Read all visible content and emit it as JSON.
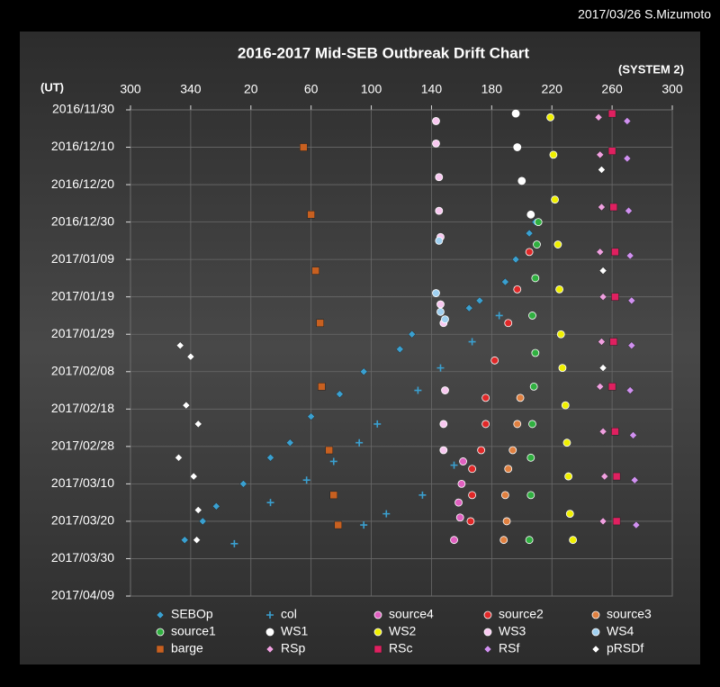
{
  "chart_data": {
    "type": "scatter",
    "title": "2016-2017 Mid-SEB Outbreak Drift Chart",
    "credit": "2017/03/26 S.Mizumoto",
    "ylabel": "(UT)",
    "xlabel": "(SYSTEM 2)",
    "xlim": [
      300,
      660
    ],
    "xticks": [
      300,
      340,
      {
        "value": 380,
        "label": "20"
      },
      {
        "value": 420,
        "label": "60"
      },
      {
        "value": 460,
        "label": "100"
      },
      {
        "value": 500,
        "label": "140"
      },
      {
        "value": 540,
        "label": "180"
      },
      {
        "value": 580,
        "label": "220"
      },
      {
        "value": 620,
        "label": "260"
      },
      {
        "value": 660,
        "label": "300"
      }
    ],
    "ylim": [
      "2016/11/30",
      "2017/04/09"
    ],
    "yticks": [
      "2016/11/30",
      "2016/12/10",
      "2016/12/20",
      "2016/12/30",
      "2017/01/09",
      "2017/01/19",
      "2017/01/29",
      "2017/02/08",
      "2017/02/18",
      "2017/02/28",
      "2017/03/10",
      "2017/03/20",
      "2017/03/30",
      "2017/04/09"
    ],
    "grid": true,
    "series": [
      {
        "name": "SEBOp",
        "color": "#3aa0d0",
        "marker": "diamond",
        "x": [
          569,
          565,
          556,
          549,
          532,
          525,
          487,
          479,
          455,
          439,
          420,
          406,
          393,
          375,
          357,
          348,
          336
        ],
        "y": [
          "2016/12/30",
          "2017/01/02",
          "2017/01/09",
          "2017/01/15",
          "2017/01/20",
          "2017/01/22",
          "2017/01/29",
          "2017/02/02",
          "2017/02/08",
          "2017/02/14",
          "2017/02/20",
          "2017/02/27",
          "2017/03/03",
          "2017/03/10",
          "2017/03/16",
          "2017/03/20",
          "2017/03/25"
        ]
      },
      {
        "name": "col",
        "color": "#3aa0d0",
        "marker": "plus",
        "x": [
          545,
          527,
          506,
          491,
          464,
          452,
          435,
          417,
          393,
          369,
          515,
          494,
          470,
          455
        ],
        "y": [
          "2017/01/24",
          "2017/01/31",
          "2017/02/07",
          "2017/02/13",
          "2017/02/22",
          "2017/02/27",
          "2017/03/04",
          "2017/03/09",
          "2017/03/15",
          "2017/03/26",
          "2017/03/05",
          "2017/03/13",
          "2017/03/18",
          "2017/03/21"
        ]
      },
      {
        "name": "source4",
        "color": "#e060c0",
        "marker": "circle",
        "x": [
          521,
          520,
          518,
          519,
          515
        ],
        "y": [
          "2017/03/04",
          "2017/03/10",
          "2017/03/15",
          "2017/03/19",
          "2017/03/25"
        ]
      },
      {
        "name": "source2",
        "color": "#e02828",
        "marker": "circle",
        "x": [
          565,
          557,
          551,
          542,
          536,
          536,
          533,
          527,
          527,
          526
        ],
        "y": [
          "2017/01/07",
          "2017/01/17",
          "2017/01/26",
          "2017/02/05",
          "2017/02/15",
          "2017/02/22",
          "2017/03/01",
          "2017/03/06",
          "2017/03/13",
          "2017/03/20"
        ]
      },
      {
        "name": "source3",
        "color": "#e08040",
        "marker": "circle",
        "x": [
          559,
          557,
          554,
          551,
          549,
          550,
          548
        ],
        "y": [
          "2017/02/15",
          "2017/02/22",
          "2017/03/01",
          "2017/03/06",
          "2017/03/13",
          "2017/03/20",
          "2017/03/25"
        ]
      },
      {
        "name": "source1",
        "color": "#30b040",
        "marker": "circle",
        "x": [
          571,
          570,
          569,
          567,
          569,
          568,
          567,
          566,
          566,
          565
        ],
        "y": [
          "2016/12/30",
          "2017/01/05",
          "2017/01/14",
          "2017/01/24",
          "2017/02/03",
          "2017/02/12",
          "2017/02/22",
          "2017/03/03",
          "2017/03/13",
          "2017/03/25"
        ]
      },
      {
        "name": "WS1",
        "color": "#ffffff",
        "marker": "circle",
        "x": [
          556,
          557,
          560,
          566
        ],
        "y": [
          "2016/12/01",
          "2016/12/10",
          "2016/12/19",
          "2016/12/28"
        ]
      },
      {
        "name": "WS2",
        "color": "#f0f000",
        "marker": "circle",
        "x": [
          579,
          581,
          582,
          584,
          585,
          586,
          587,
          589,
          590,
          591,
          592,
          594
        ],
        "y": [
          "2016/12/02",
          "2016/12/12",
          "2016/12/24",
          "2017/01/05",
          "2017/01/17",
          "2017/01/29",
          "2017/02/07",
          "2017/02/17",
          "2017/02/27",
          "2017/03/08",
          "2017/03/18",
          "2017/03/25"
        ]
      },
      {
        "name": "WS3",
        "color": "#f8c8f0",
        "marker": "circle",
        "x": [
          503,
          503,
          505,
          505,
          506,
          506,
          508,
          509,
          508,
          508
        ],
        "y": [
          "2016/12/03",
          "2016/12/09",
          "2016/12/18",
          "2016/12/27",
          "2017/01/03",
          "2017/01/21",
          "2017/01/26",
          "2017/02/13",
          "2017/02/22",
          "2017/03/01"
        ]
      },
      {
        "name": "WS4",
        "color": "#a0d0f0",
        "marker": "circle",
        "x": [
          505,
          503,
          506,
          509
        ],
        "y": [
          "2017/01/04",
          "2017/01/18",
          "2017/01/23",
          "2017/01/25"
        ]
      },
      {
        "name": "barge",
        "color": "#c86020",
        "marker": "square",
        "x": [
          415,
          420,
          423,
          426,
          427,
          432,
          435,
          438
        ],
        "y": [
          "2016/12/10",
          "2016/12/28",
          "2017/01/12",
          "2017/01/26",
          "2017/02/12",
          "2017/03/01",
          "2017/03/13",
          "2017/03/21"
        ]
      },
      {
        "name": "RSp",
        "color": "#f0a0e0",
        "marker": "diamond",
        "x": [
          611,
          612,
          613,
          612,
          614,
          613,
          612,
          614,
          615,
          614
        ],
        "y": [
          "2016/12/02",
          "2016/12/12",
          "2016/12/26",
          "2017/01/07",
          "2017/01/19",
          "2017/01/31",
          "2017/02/12",
          "2017/02/24",
          "2017/03/08",
          "2017/03/20"
        ]
      },
      {
        "name": "RSc",
        "color": "#e02060",
        "marker": "square",
        "x": [
          620,
          620,
          621,
          622,
          622,
          621,
          620,
          622,
          623,
          623
        ],
        "y": [
          "2016/12/01",
          "2016/12/11",
          "2016/12/26",
          "2017/01/07",
          "2017/01/19",
          "2017/01/31",
          "2017/02/12",
          "2017/02/24",
          "2017/03/08",
          "2017/03/20"
        ]
      },
      {
        "name": "RSf",
        "color": "#d090f0",
        "marker": "diamond",
        "x": [
          630,
          630,
          631,
          632,
          633,
          633,
          632,
          634,
          635,
          636
        ],
        "y": [
          "2016/12/03",
          "2016/12/13",
          "2016/12/27",
          "2017/01/08",
          "2017/01/20",
          "2017/02/01",
          "2017/02/13",
          "2017/02/25",
          "2017/03/09",
          "2017/03/21"
        ]
      },
      {
        "name": "pRSDf",
        "color": "#ffffff",
        "marker": "diamond",
        "x": [
          333,
          340,
          337,
          345,
          332,
          342,
          345,
          344,
          613,
          614,
          614
        ],
        "y": [
          "2017/02/01",
          "2017/02/04",
          "2017/02/17",
          "2017/02/22",
          "2017/03/03",
          "2017/03/08",
          "2017/03/17",
          "2017/03/25",
          "2016/12/16",
          "2017/01/12",
          "2017/02/07"
        ]
      }
    ]
  }
}
